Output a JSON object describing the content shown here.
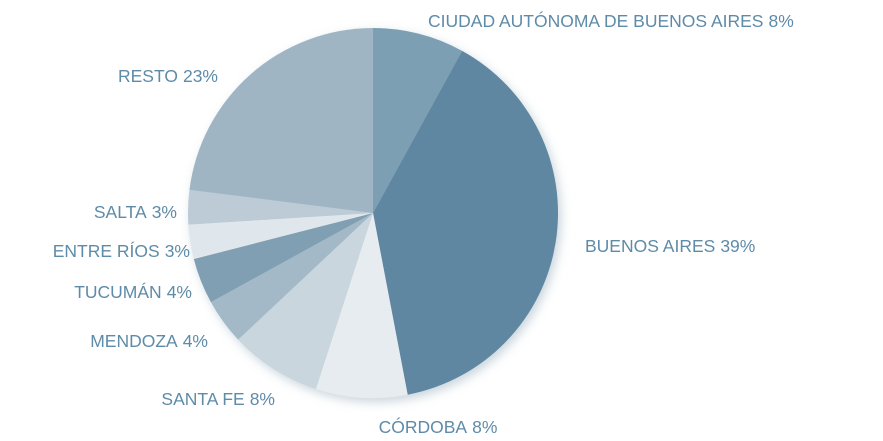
{
  "chart_data": {
    "type": "pie",
    "categories": [
      "CIUDAD AUTÓNOMA DE BUENOS AIRES",
      "BUENOS AIRES",
      "CÓRDOBA",
      "SANTA FE",
      "MENDOZA",
      "TUCUMÁN",
      "ENTRE RÍOS",
      "SALTA",
      "RESTO"
    ],
    "values": [
      8,
      39,
      8,
      8,
      4,
      4,
      3,
      3,
      23
    ],
    "value_labels": [
      "8%",
      "39%",
      "8%",
      "8%",
      "4%",
      "4%",
      "3%",
      "3%",
      "23%"
    ],
    "colors": [
      "#7d9fb3",
      "#5f87a1",
      "#e6ecf0",
      "#c9d6de",
      "#a3b9c7",
      "#819fb2",
      "#e0e7ec",
      "#bccbd5",
      "#a0b5c4"
    ]
  }
}
